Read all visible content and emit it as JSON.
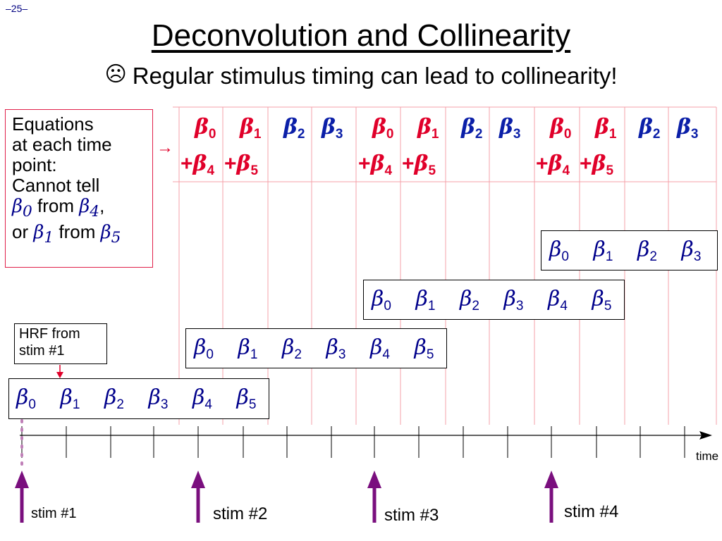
{
  "slide_number": "–25–",
  "title": "Deconvolution and Collinearity",
  "subtitle": {
    "icon": "frown-face-icon",
    "icon_glyph": "☹",
    "text": "Regular stimulus timing can lead to collinearity!"
  },
  "equations_box": {
    "lines": [
      "Equations",
      "at each time",
      "point:",
      "Cannot tell"
    ],
    "line5": {
      "b1": "β",
      "s1": "0",
      "mid": " from ",
      "b2": "β",
      "s2": "4",
      "end": ","
    },
    "line6": {
      "pre": "or ",
      "b1": "β",
      "s1": "1",
      "mid": " from ",
      "b2": "β",
      "s2": "5"
    },
    "arrow": "→"
  },
  "beta_symbol": "β",
  "equation_columns": [
    {
      "top": {
        "sym": "β",
        "sub": "0"
      },
      "bottom": {
        "plus": "+",
        "sym": "β",
        "sub": "4"
      },
      "color": "red"
    },
    {
      "top": {
        "sym": "β",
        "sub": "1"
      },
      "bottom": {
        "plus": "+",
        "sym": "β",
        "sub": "5"
      },
      "color": "red"
    },
    {
      "top": {
        "sym": "β",
        "sub": "2"
      },
      "color": "blue"
    },
    {
      "top": {
        "sym": "β",
        "sub": "3"
      },
      "color": "blue"
    },
    {
      "top": {
        "sym": "β",
        "sub": "0"
      },
      "bottom": {
        "plus": "+",
        "sym": "β",
        "sub": "4"
      },
      "color": "red"
    },
    {
      "top": {
        "sym": "β",
        "sub": "1"
      },
      "bottom": {
        "plus": "+",
        "sym": "β",
        "sub": "5"
      },
      "color": "red"
    },
    {
      "top": {
        "sym": "β",
        "sub": "2"
      },
      "color": "blue"
    },
    {
      "top": {
        "sym": "β",
        "sub": "3"
      },
      "color": "blue"
    },
    {
      "top": {
        "sym": "β",
        "sub": "0"
      },
      "bottom": {
        "plus": "+",
        "sym": "β",
        "sub": "4"
      },
      "color": "red"
    },
    {
      "top": {
        "sym": "β",
        "sub": "1"
      },
      "bottom": {
        "plus": "+",
        "sym": "β",
        "sub": "5"
      },
      "color": "red"
    },
    {
      "top": {
        "sym": "β",
        "sub": "2"
      },
      "color": "blue"
    },
    {
      "top": {
        "sym": "β",
        "sub": "3"
      },
      "color": "blue"
    }
  ],
  "hrf_rows": [
    {
      "stim": "stim #1",
      "subs": [
        "0",
        "1",
        "2",
        "3",
        "4",
        "5"
      ]
    },
    {
      "stim": "stim #2",
      "subs": [
        "0",
        "1",
        "2",
        "3",
        "4",
        "5"
      ]
    },
    {
      "stim": "stim #3",
      "subs": [
        "0",
        "1",
        "2",
        "3",
        "4",
        "5"
      ]
    },
    {
      "stim": "stim #4",
      "subs": [
        "0",
        "1",
        "2",
        "3"
      ]
    }
  ],
  "hrf_label": [
    "HRF from",
    "stim #1"
  ],
  "timeline": {
    "label": "time",
    "ticks": 16
  },
  "stimuli": [
    "stim #1",
    "stim #2",
    "stim #3",
    "stim #4"
  ],
  "colors": {
    "title": "#000000",
    "grid_line": "#f4a0a8",
    "red_eq": "#e0002a",
    "blue_eq": "#0b1fa8",
    "beta": "#00008b",
    "stim_arrow": "#7a0f7e",
    "dots": "#c080b8",
    "box_border": "#e0204a"
  }
}
